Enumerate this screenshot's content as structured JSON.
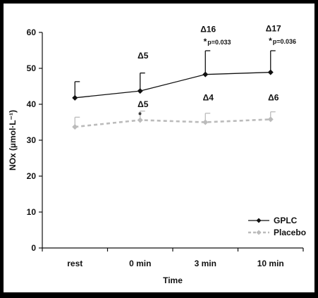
{
  "chart_data": {
    "type": "line",
    "title": "",
    "xlabel": "Time",
    "ylabel": "NOx (µmol·L⁻¹)",
    "ylim": [
      0,
      60
    ],
    "yticks": [
      0,
      10,
      20,
      30,
      40,
      50,
      60
    ],
    "categories": [
      "rest",
      "0 min",
      "3 min",
      "10 min"
    ],
    "grid": false,
    "legend_position": "bottom-right",
    "series": [
      {
        "name": "GPLC",
        "color": "#111111",
        "line_style": "solid",
        "marker": "diamond",
        "values": [
          41.8,
          43.7,
          48.3,
          48.9
        ],
        "error": [
          4.5,
          5.0,
          6.6,
          6.0
        ]
      },
      {
        "name": "Placebo",
        "color": "#bbbbbb",
        "line_style": "dashed",
        "marker": "diamond",
        "values": [
          33.7,
          35.6,
          35.0,
          35.8
        ],
        "error": [
          2.7,
          2.5,
          2.5,
          2.1
        ]
      }
    ],
    "annotations": [
      {
        "text": "Δ5",
        "category": "0 min",
        "y": 52.7
      },
      {
        "text": "Δ16",
        "category": "3 min",
        "y": 60.1
      },
      {
        "text": "*",
        "category": "3 min",
        "y": 56.7
      },
      {
        "text": "p=0.033",
        "category": "3 min",
        "y": 56.7,
        "small": true
      },
      {
        "text": "Δ17",
        "category": "10 min",
        "y": 60.3
      },
      {
        "text": "*",
        "category": "10 min",
        "y": 56.9
      },
      {
        "text": "p=0.036",
        "category": "10 min",
        "y": 56.9,
        "small": true
      },
      {
        "text": "Δ5",
        "category": "0 min",
        "y": 39.2
      },
      {
        "text": "*",
        "category": "0 min",
        "y": 36.2
      },
      {
        "text": "Δ4",
        "category": "3 min",
        "y": 41.1
      },
      {
        "text": "Δ6",
        "category": "10 min",
        "y": 41.1
      }
    ]
  }
}
